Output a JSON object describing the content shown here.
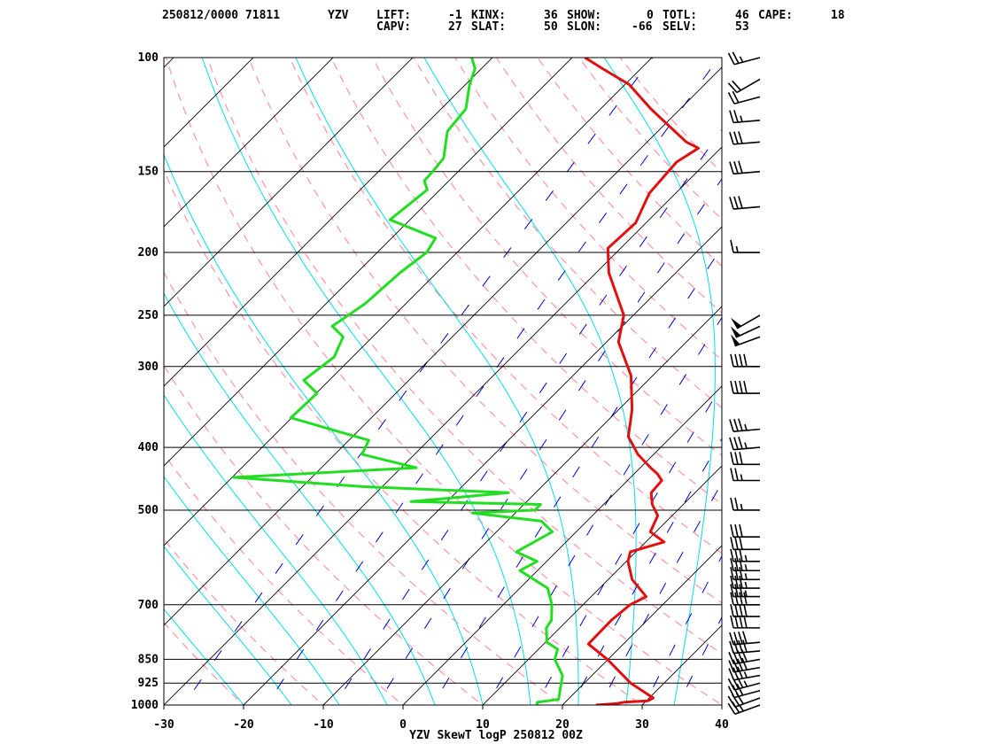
{
  "header": {
    "line1": [
      {
        "text": "250812/0000 71811",
        "x": 183
      },
      {
        "text": "YZV",
        "x": 370
      },
      {
        "text": "LIFT:",
        "x": 425
      },
      {
        "text": "-1",
        "x": 506
      },
      {
        "text": "KINX:",
        "x": 532
      },
      {
        "text": "36",
        "x": 614
      },
      {
        "text": "SHOW:",
        "x": 640
      },
      {
        "text": "0",
        "x": 730
      },
      {
        "text": "TOTL:",
        "x": 748
      },
      {
        "text": "46",
        "x": 830
      },
      {
        "text": "CAPE:",
        "x": 856
      },
      {
        "text": "18",
        "x": 938
      }
    ],
    "line2": [
      {
        "text": "CAPV:",
        "x": 425
      },
      {
        "text": "27",
        "x": 506
      },
      {
        "text": "SLAT:",
        "x": 532
      },
      {
        "text": "50",
        "x": 614
      },
      {
        "text": "SLON:",
        "x": 640
      },
      {
        "text": "-66",
        "x": 713
      },
      {
        "text": "SELV:",
        "x": 748
      },
      {
        "text": "53",
        "x": 830
      }
    ]
  },
  "footer": {
    "caption": "YZV SkewT logP 250812 00Z"
  },
  "colors": {
    "temperature": "#e01010",
    "dewpoint": "#22dd22",
    "isotherm": "#000000",
    "dry_adiabat": "#ff9aa8",
    "moist_adiabat": "#00dde8",
    "mixing_ratio": "#0000cc",
    "isobar": "#000000"
  },
  "chart_data": {
    "type": "line",
    "title": "",
    "xlabel": "",
    "ylabel": "",
    "xlim": [
      -30,
      40
    ],
    "ylim": [
      1000,
      100
    ],
    "y_scale": "log",
    "x_ticks": [
      -30,
      -20,
      -10,
      0,
      10,
      20,
      30,
      40
    ],
    "y_ticks": [
      1000,
      925,
      850,
      700,
      500,
      400,
      300,
      250,
      200,
      150,
      100
    ],
    "isotherm_skew_deg": 45,
    "series": [
      {
        "name": "",
        "role": "temperature",
        "points": [
          [
            1000,
            24.2
          ],
          [
            995,
            26.6
          ],
          [
            990,
            27.4
          ],
          [
            985,
            30.2
          ],
          [
            975,
            30.5
          ],
          [
            925,
            25.8
          ],
          [
            850,
            19.9
          ],
          [
            805,
            15.6
          ],
          [
            740,
            15.5
          ],
          [
            700,
            15.9
          ],
          [
            680,
            16.9
          ],
          [
            640,
            13.0
          ],
          [
            600,
            10.2
          ],
          [
            580,
            9.3
          ],
          [
            560,
            12.3
          ],
          [
            540,
            9.3
          ],
          [
            510,
            8.2
          ],
          [
            490,
            6.1
          ],
          [
            470,
            4.5
          ],
          [
            450,
            4.3
          ],
          [
            440,
            3.0
          ],
          [
            430,
            1.3
          ],
          [
            410,
            -2.0
          ],
          [
            385,
            -5.4
          ],
          [
            350,
            -8.3
          ],
          [
            310,
            -12.7
          ],
          [
            275,
            -18.5
          ],
          [
            250,
            -21.2
          ],
          [
            215,
            -28.4
          ],
          [
            197,
            -31.6
          ],
          [
            180,
            -31.3
          ],
          [
            162,
            -33.3
          ],
          [
            145,
            -33.8
          ],
          [
            138,
            -32.8
          ],
          [
            135,
            -35.1
          ],
          [
            120,
            -43.7
          ],
          [
            110,
            -49.5
          ],
          [
            104,
            -54.8
          ],
          [
            100,
            -58.4
          ]
        ]
      },
      {
        "name": "",
        "role": "dewpoint",
        "points": [
          [
            1000,
            16.8
          ],
          [
            990,
            16.5
          ],
          [
            980,
            18.8
          ],
          [
            900,
            16.3
          ],
          [
            850,
            13.3
          ],
          [
            820,
            12.4
          ],
          [
            800,
            10.2
          ],
          [
            760,
            8.3
          ],
          [
            740,
            8.0
          ],
          [
            700,
            6.1
          ],
          [
            660,
            3.5
          ],
          [
            620,
            -2.2
          ],
          [
            600,
            -1.2
          ],
          [
            580,
            -5.0
          ],
          [
            540,
            -3.0
          ],
          [
            520,
            -5.7
          ],
          [
            505,
            -15.4
          ],
          [
            500,
            -7.9
          ],
          [
            490,
            -7.9
          ],
          [
            485,
            -24.5
          ],
          [
            470,
            -13.4
          ],
          [
            460,
            -32.2
          ],
          [
            445,
            -49.8
          ],
          [
            430,
            -28.1
          ],
          [
            410,
            -36.6
          ],
          [
            390,
            -37.5
          ],
          [
            360,
            -50.1
          ],
          [
            330,
            -49.9
          ],
          [
            315,
            -53.2
          ],
          [
            290,
            -52.3
          ],
          [
            270,
            -53.7
          ],
          [
            260,
            -56.4
          ],
          [
            240,
            -55.1
          ],
          [
            215,
            -54.6
          ],
          [
            200,
            -53.8
          ],
          [
            190,
            -54.5
          ],
          [
            178,
            -62.5
          ],
          [
            160,
            -61.6
          ],
          [
            155,
            -63.1
          ],
          [
            150,
            -63.2
          ],
          [
            143,
            -63.5
          ],
          [
            130,
            -66.4
          ],
          [
            120,
            -66.9
          ],
          [
            110,
            -69.5
          ],
          [
            104,
            -70.8
          ],
          [
            100,
            -72.6
          ]
        ]
      }
    ],
    "wind_barbs": [
      {
        "p": 1000,
        "dir": 250,
        "spd": 25
      },
      {
        "p": 975,
        "dir": 250,
        "spd": 30
      },
      {
        "p": 950,
        "dir": 255,
        "spd": 30
      },
      {
        "p": 925,
        "dir": 255,
        "spd": 35
      },
      {
        "p": 900,
        "dir": 260,
        "spd": 35
      },
      {
        "p": 875,
        "dir": 260,
        "spd": 40
      },
      {
        "p": 850,
        "dir": 260,
        "spd": 40
      },
      {
        "p": 825,
        "dir": 265,
        "spd": 40
      },
      {
        "p": 800,
        "dir": 265,
        "spd": 40
      },
      {
        "p": 760,
        "dir": 270,
        "spd": 40
      },
      {
        "p": 730,
        "dir": 270,
        "spd": 40
      },
      {
        "p": 700,
        "dir": 270,
        "spd": 40
      },
      {
        "p": 680,
        "dir": 270,
        "spd": 35
      },
      {
        "p": 660,
        "dir": 270,
        "spd": 35
      },
      {
        "p": 640,
        "dir": 270,
        "spd": 35
      },
      {
        "p": 620,
        "dir": 270,
        "spd": 35
      },
      {
        "p": 600,
        "dir": 270,
        "spd": 35
      },
      {
        "p": 575,
        "dir": 270,
        "spd": 30
      },
      {
        "p": 550,
        "dir": 270,
        "spd": 30
      },
      {
        "p": 500,
        "dir": 270,
        "spd": 25
      },
      {
        "p": 450,
        "dir": 270,
        "spd": 25
      },
      {
        "p": 425,
        "dir": 270,
        "spd": 30
      },
      {
        "p": 400,
        "dir": 265,
        "spd": 35
      },
      {
        "p": 375,
        "dir": 265,
        "spd": 35
      },
      {
        "p": 330,
        "dir": 270,
        "spd": 40
      },
      {
        "p": 300,
        "dir": 270,
        "spd": 40
      },
      {
        "p": 270,
        "dir": 250,
        "spd": 50
      },
      {
        "p": 260,
        "dir": 245,
        "spd": 50
      },
      {
        "p": 250,
        "dir": 240,
        "spd": 50
      },
      {
        "p": 200,
        "dir": 270,
        "spd": 15
      },
      {
        "p": 170,
        "dir": 265,
        "spd": 30
      },
      {
        "p": 150,
        "dir": 265,
        "spd": 30
      },
      {
        "p": 135,
        "dir": 265,
        "spd": 30
      },
      {
        "p": 125,
        "dir": 265,
        "spd": 25
      },
      {
        "p": 115,
        "dir": 255,
        "spd": 20
      },
      {
        "p": 108,
        "dir": 240,
        "spd": 20
      },
      {
        "p": 100,
        "dir": 255,
        "spd": 25
      }
    ]
  }
}
